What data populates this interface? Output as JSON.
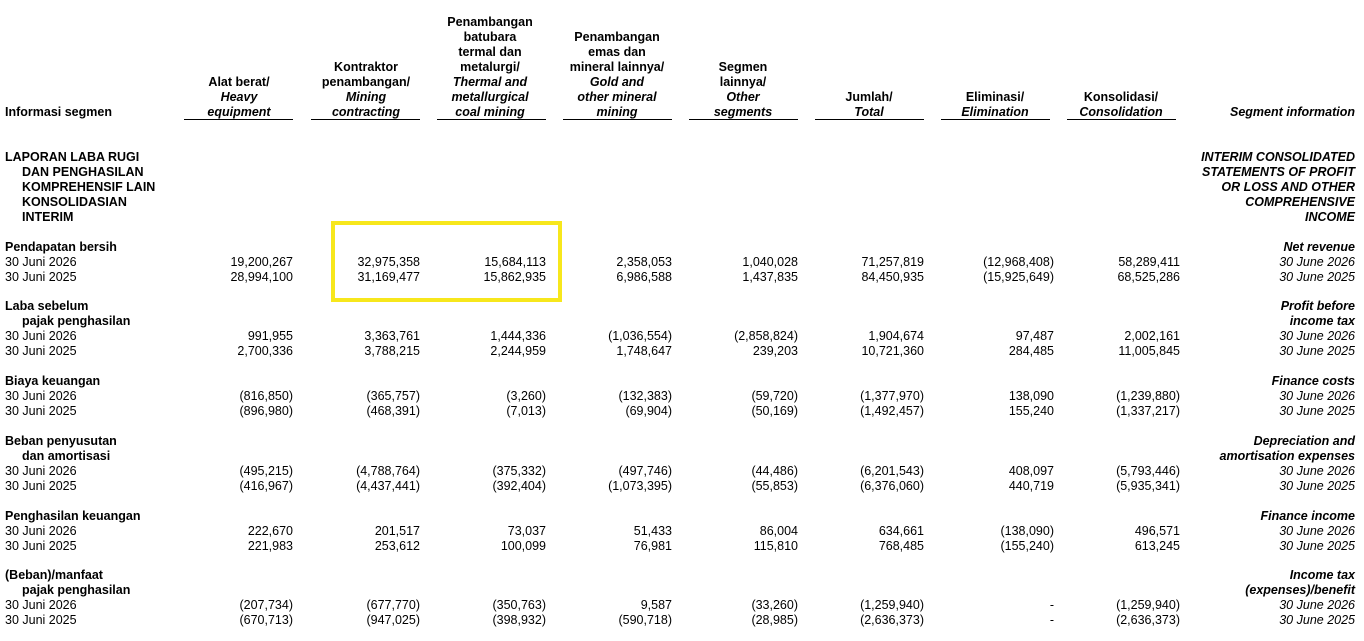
{
  "header": {
    "left_label": "Informasi segmen",
    "right_label": "Segment information",
    "columns": [
      {
        "id": "heavy",
        "id_lines": [
          "Alat berat/"
        ],
        "en_lines": [
          "Heavy",
          "equipment"
        ]
      },
      {
        "id": "mining",
        "id_lines": [
          "Kontraktor",
          "penambangan/"
        ],
        "en_lines": [
          "Mining",
          "contracting"
        ]
      },
      {
        "id": "coal",
        "id_lines": [
          "Penambangan",
          "batubara",
          "termal dan",
          "metalurgi/"
        ],
        "en_lines": [
          "Thermal and",
          "metallurgical",
          "coal mining"
        ]
      },
      {
        "id": "gold",
        "id_lines": [
          "Penambangan",
          "emas dan",
          "mineral lainnya/"
        ],
        "en_lines": [
          "Gold and",
          "other mineral",
          "mining"
        ]
      },
      {
        "id": "other",
        "id_lines": [
          "Segmen",
          "lainnya/"
        ],
        "en_lines": [
          "Other",
          "segments"
        ]
      },
      {
        "id": "total",
        "id_lines": [
          "Jumlah/"
        ],
        "en_lines": [
          "Total"
        ]
      },
      {
        "id": "elim",
        "id_lines": [
          "Eliminasi/"
        ],
        "en_lines": [
          "Elimination"
        ]
      },
      {
        "id": "consol",
        "id_lines": [
          "Konsolidasi/"
        ],
        "en_lines": [
          "Consolidation"
        ]
      }
    ]
  },
  "statement_title": {
    "left": [
      "LAPORAN LABA RUGI",
      "DAN PENGHASILAN",
      "KOMPREHENSIF LAIN",
      "KONSOLIDASIAN",
      "INTERIM"
    ],
    "right": [
      "INTERIM CONSOLIDATED",
      "STATEMENTS OF PROFIT",
      "OR LOSS AND OTHER",
      "COMPREHENSIVE",
      "INCOME"
    ]
  },
  "sections": [
    {
      "left_title": [
        "Pendapatan bersih"
      ],
      "right_title": [
        "Net revenue"
      ],
      "rows": [
        {
          "left": "30 Juni 2026",
          "right": "30 June 2026",
          "values": [
            "19,200,267",
            "32,975,358",
            "15,684,113",
            "2,358,053",
            "1,040,028",
            "71,257,819",
            "(12,968,408)",
            "58,289,411"
          ]
        },
        {
          "left": "30 Juni 2025",
          "right": "30 June 2025",
          "values": [
            "28,994,100",
            "31,169,477",
            "15,862,935",
            "6,986,588",
            "1,437,835",
            "84,450,935",
            "(15,925,649)",
            "68,525,286"
          ]
        }
      ]
    },
    {
      "left_title": [
        "Laba sebelum",
        "pajak penghasilan"
      ],
      "right_title": [
        "Profit before",
        "income tax"
      ],
      "rows": [
        {
          "left": "30 Juni 2026",
          "right": "30 June 2026",
          "values": [
            "991,955",
            "3,363,761",
            "1,444,336",
            "(1,036,554)",
            "(2,858,824)",
            "1,904,674",
            "97,487",
            "2,002,161"
          ]
        },
        {
          "left": "30 Juni 2025",
          "right": "30 June 2025",
          "values": [
            "2,700,336",
            "3,788,215",
            "2,244,959",
            "1,748,647",
            "239,203",
            "10,721,360",
            "284,485",
            "11,005,845"
          ]
        }
      ]
    },
    {
      "left_title": [
        "Biaya keuangan"
      ],
      "right_title": [
        "Finance costs"
      ],
      "rows": [
        {
          "left": "30 Juni 2026",
          "right": "30 June 2026",
          "values": [
            "(816,850)",
            "(365,757)",
            "(3,260)",
            "(132,383)",
            "(59,720)",
            "(1,377,970)",
            "138,090",
            "(1,239,880)"
          ]
        },
        {
          "left": "30 Juni 2025",
          "right": "30 June 2025",
          "values": [
            "(896,980)",
            "(468,391)",
            "(7,013)",
            "(69,904)",
            "(50,169)",
            "(1,492,457)",
            "155,240",
            "(1,337,217)"
          ]
        }
      ]
    },
    {
      "left_title": [
        "Beban penyusutan",
        "dan amortisasi"
      ],
      "right_title": [
        "Depreciation and",
        "amortisation expenses"
      ],
      "rows": [
        {
          "left": "30 Juni 2026",
          "right": "30 June 2026",
          "values": [
            "(495,215)",
            "(4,788,764)",
            "(375,332)",
            "(497,746)",
            "(44,486)",
            "(6,201,543)",
            "408,097",
            "(5,793,446)"
          ]
        },
        {
          "left": "30 Juni 2025",
          "right": "30 June 2025",
          "values": [
            "(416,967)",
            "(4,437,441)",
            "(392,404)",
            "(1,073,395)",
            "(55,853)",
            "(6,376,060)",
            "440,719",
            "(5,935,341)"
          ]
        }
      ]
    },
    {
      "left_title": [
        "Penghasilan keuangan"
      ],
      "right_title": [
        "Finance income"
      ],
      "rows": [
        {
          "left": "30 Juni 2026",
          "right": "30 June 2026",
          "values": [
            "222,670",
            "201,517",
            "73,037",
            "51,433",
            "86,004",
            "634,661",
            "(138,090)",
            "496,571"
          ]
        },
        {
          "left": "30 Juni 2025",
          "right": "30 June 2025",
          "values": [
            "221,983",
            "253,612",
            "100,099",
            "76,981",
            "115,810",
            "768,485",
            "(155,240)",
            "613,245"
          ]
        }
      ]
    },
    {
      "left_title": [
        "(Beban)/manfaat",
        "pajak penghasilan"
      ],
      "right_title": [
        "Income tax",
        "(expenses)/benefit"
      ],
      "rows": [
        {
          "left": "30 Juni 2026",
          "right": "30 June 2026",
          "values": [
            "(207,734)",
            "(677,770)",
            "(350,763)",
            "9,587",
            "(33,260)",
            "(1,259,940)",
            "-",
            "(1,259,940)"
          ]
        },
        {
          "left": "30 Juni 2025",
          "right": "30 June 2025",
          "values": [
            "(670,713)",
            "(947,025)",
            "(398,932)",
            "(590,718)",
            "(28,985)",
            "(2,636,373)",
            "-",
            "(2,636,373)"
          ]
        }
      ]
    }
  ],
  "highlight": {
    "color": "#f7e71c"
  }
}
